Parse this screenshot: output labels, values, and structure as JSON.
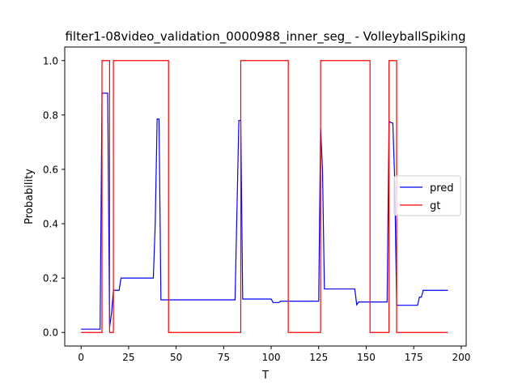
{
  "chart_data": {
    "type": "line",
    "title": "filter1-08video_validation_0000988_inner_seg_ - VolleyballSpiking",
    "xlabel": "T",
    "ylabel": "Probability",
    "xlim": [
      -8.6,
      202.6
    ],
    "ylim": [
      -0.05,
      1.05
    ],
    "xticks": [
      0,
      25,
      50,
      75,
      100,
      125,
      150,
      175,
      200
    ],
    "xtick_labels": [
      "0",
      "25",
      "50",
      "75",
      "100",
      "125",
      "150",
      "175",
      "200"
    ],
    "yticks": [
      0.0,
      0.2,
      0.4,
      0.6,
      0.8,
      1.0
    ],
    "ytick_labels": [
      "0.0",
      "0.2",
      "0.4",
      "0.6",
      "0.8",
      "1.0"
    ],
    "legend_position": "center-right",
    "series": [
      {
        "name": "pred",
        "color": "#0000ff",
        "points": [
          [
            0,
            0.012
          ],
          [
            10,
            0.012
          ],
          [
            11,
            0.88
          ],
          [
            14,
            0.88
          ],
          [
            15,
            0.02
          ],
          [
            16,
            0.07
          ],
          [
            17,
            0.155
          ],
          [
            20,
            0.155
          ],
          [
            21,
            0.2
          ],
          [
            38,
            0.2
          ],
          [
            39,
            0.4
          ],
          [
            40,
            0.785
          ],
          [
            41,
            0.785
          ],
          [
            42,
            0.12
          ],
          [
            81,
            0.12
          ],
          [
            83,
            0.78
          ],
          [
            84,
            0.78
          ],
          [
            85,
            0.123
          ],
          [
            100,
            0.123
          ],
          [
            101,
            0.11
          ],
          [
            104,
            0.11
          ],
          [
            105,
            0.115
          ],
          [
            125,
            0.115
          ],
          [
            126,
            0.752
          ],
          [
            127,
            0.6
          ],
          [
            128,
            0.16
          ],
          [
            144,
            0.16
          ],
          [
            145,
            0.102
          ],
          [
            146,
            0.112
          ],
          [
            161,
            0.112
          ],
          [
            162,
            0.775
          ],
          [
            164,
            0.77
          ],
          [
            165,
            0.56
          ],
          [
            166,
            0.1
          ],
          [
            177,
            0.1
          ],
          [
            178,
            0.13
          ],
          [
            179,
            0.13
          ],
          [
            180,
            0.155
          ],
          [
            193,
            0.155
          ]
        ]
      },
      {
        "name": "gt",
        "color": "#ff0000",
        "points": [
          [
            0,
            0
          ],
          [
            11,
            0
          ],
          [
            11,
            1
          ],
          [
            15,
            1
          ],
          [
            15,
            0
          ],
          [
            17,
            0
          ],
          [
            17,
            1
          ],
          [
            46,
            1
          ],
          [
            46,
            0
          ],
          [
            84,
            0
          ],
          [
            84,
            1
          ],
          [
            109,
            1
          ],
          [
            109,
            0
          ],
          [
            126,
            0
          ],
          [
            126,
            1
          ],
          [
            152,
            1
          ],
          [
            152,
            0
          ],
          [
            162,
            0
          ],
          [
            162,
            1
          ],
          [
            166,
            1
          ],
          [
            166,
            0
          ],
          [
            193,
            0
          ]
        ]
      }
    ]
  }
}
